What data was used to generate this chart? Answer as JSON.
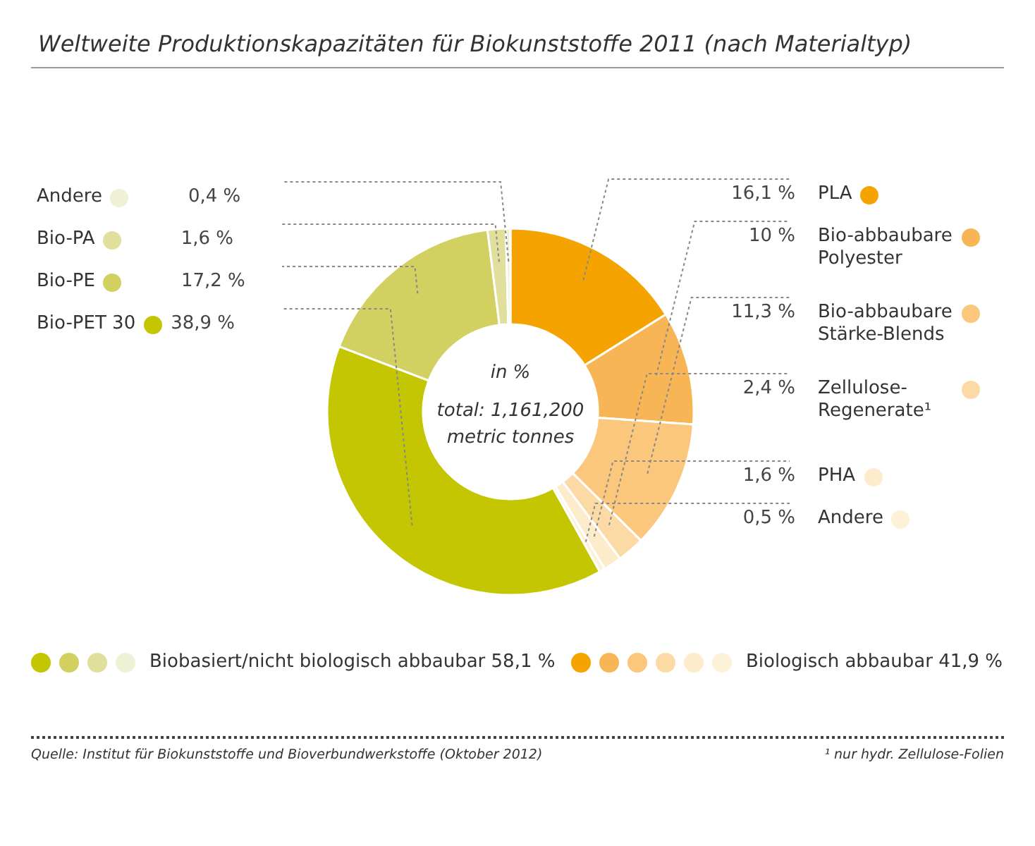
{
  "chart_data": {
    "type": "donut",
    "title": "Weltweite Produktionskapazitäten für Biokunststoffe 2011 (nach Materialtyp)",
    "categories": [
      "PLA",
      "Bio-abbaubare Polyester",
      "Bio-abbaubare Stärke-Blends",
      "Zellulose-Regenerate¹",
      "PHA",
      "Andere",
      "Bio-PET 30",
      "Bio-PE",
      "Bio-PA",
      "Andere"
    ],
    "values": [
      16.1,
      10,
      11.3,
      2.4,
      1.6,
      0.5,
      38.9,
      17.2,
      1.6,
      0.4
    ],
    "value_labels": [
      "16,1 %",
      "10 %",
      "11,3 %",
      "2,4 %",
      "1,6 %",
      "0,5 %",
      "38,9 %",
      "17,2 %",
      "1,6 %",
      "0,4 %"
    ],
    "colors": [
      "#f5a300",
      "#f8b556",
      "#fbc77c",
      "#fcdaa6",
      "#fdeccc",
      "#fdf1d8",
      "#c3c600",
      "#d2d060",
      "#e0df9c",
      "#eff1d6"
    ],
    "annotations": [
      "in %",
      "total: 1,161,200 metric tonnes",
      "Biobasiert/nicht biologisch abbaubar 58,1 %",
      "Biologisch abbaubar 41,9 %",
      "Quelle: Institut für Biokunststoffe und Bioverbundwerkstoffe (Oktober 2012)",
      "¹ nur hydr. Zellulose-Folien"
    ],
    "legend": "right"
  }
}
